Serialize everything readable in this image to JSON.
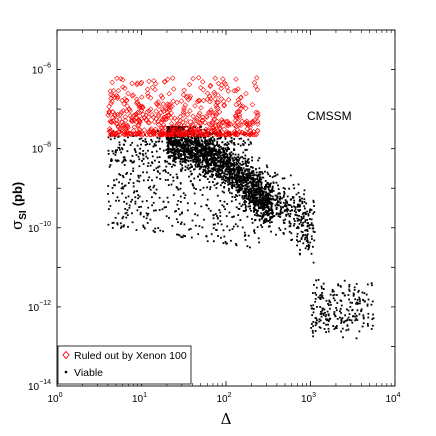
{
  "chart_data": {
    "type": "scatter",
    "title": "",
    "annotation": "CMSSM",
    "xlabel": "Δ",
    "ylabel_main": "σ",
    "ylabel_sub": "SI",
    "ylabel_unit": "(pb)",
    "x_scale": "log",
    "y_scale": "log",
    "xlim": [
      1,
      10000
    ],
    "ylim": [
      1e-14,
      1e-05
    ],
    "grid": false,
    "legend_position": "bottom-left",
    "x_ticks": [
      {
        "base": "10",
        "exp": "0",
        "value": 1
      },
      {
        "base": "10",
        "exp": "1",
        "value": 10
      },
      {
        "base": "10",
        "exp": "2",
        "value": 100
      },
      {
        "base": "10",
        "exp": "3",
        "value": 1000
      },
      {
        "base": "10",
        "exp": "4",
        "value": 10000
      }
    ],
    "y_ticks": [
      {
        "base": "10",
        "exp": "−6",
        "value": 1e-06
      },
      {
        "base": "10",
        "exp": "−8",
        "value": 1e-08
      },
      {
        "base": "10",
        "exp": "−10",
        "value": 1e-10
      },
      {
        "base": "10",
        "exp": "−12",
        "value": 1e-12
      },
      {
        "base": "10",
        "exp": "−14",
        "value": 1e-14
      }
    ],
    "series": [
      {
        "name": "Ruled out by Xenon 100",
        "marker": "diamond-open",
        "color": "#ff0000",
        "description_region": {
          "x_range": [
            4,
            250
          ],
          "y_range": [
            2e-08,
            1e-06
          ]
        }
      },
      {
        "name": "Viable",
        "marker": "dot",
        "color": "#000000",
        "description_region": {
          "x_range": [
            4,
            6000
          ],
          "y_range": [
            1e-13,
            4e-08
          ]
        }
      }
    ]
  }
}
